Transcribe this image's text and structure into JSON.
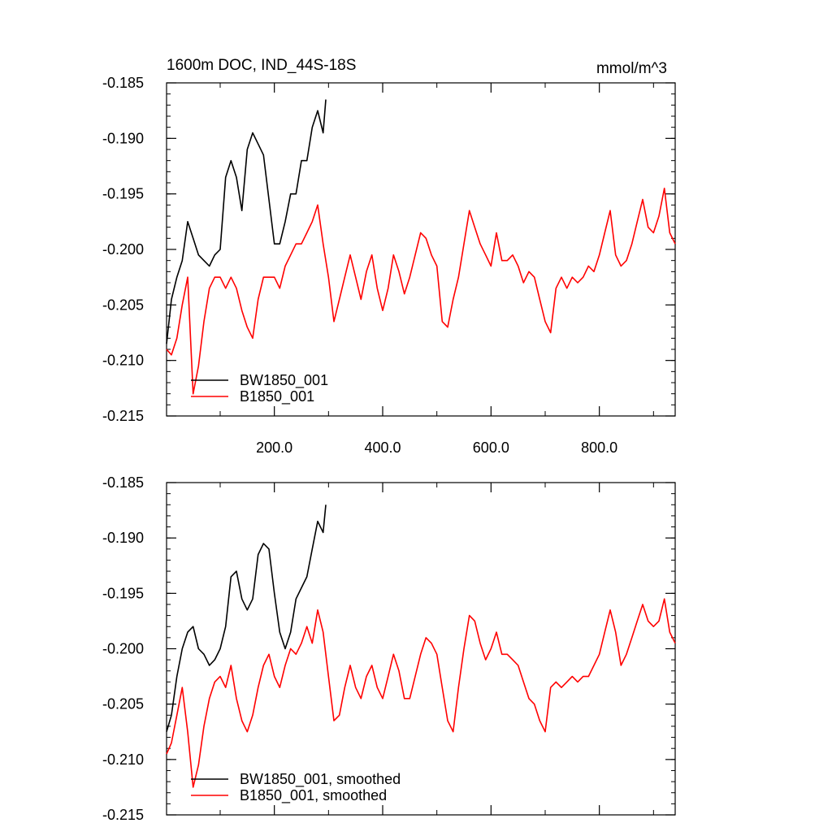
{
  "chart_data": [
    {
      "type": "line",
      "title": "1600m DOC, IND_44S-18S",
      "units": "mmol/m^3",
      "xlim": [
        1,
        940
      ],
      "ylim": [
        -0.215,
        -0.185
      ],
      "x_ticks": [
        200,
        400,
        600,
        800
      ],
      "x_tick_labels": [
        "200.0",
        "400.0",
        "600.0",
        "800.0"
      ],
      "y_ticks": [
        -0.185,
        -0.19,
        -0.195,
        -0.2,
        -0.205,
        -0.21,
        -0.215
      ],
      "y_tick_labels": [
        "-0.185",
        "-0.190",
        "-0.195",
        "-0.200",
        "-0.205",
        "-0.210",
        "-0.215"
      ],
      "grid": false,
      "legend_position": "bottom-left",
      "series": [
        {
          "name": "BW1850_001",
          "color": "#000000",
          "x": [
            1,
            10,
            20,
            30,
            40,
            50,
            60,
            70,
            80,
            90,
            100,
            110,
            120,
            130,
            140,
            150,
            160,
            170,
            180,
            190,
            200,
            210,
            220,
            230,
            240,
            250,
            260,
            270,
            280,
            290,
            295
          ],
          "y": [
            -0.2085,
            -0.2045,
            -0.2025,
            -0.201,
            -0.1975,
            -0.199,
            -0.2005,
            -0.201,
            -0.2015,
            -0.2005,
            -0.2,
            -0.1935,
            -0.192,
            -0.1935,
            -0.1965,
            -0.191,
            -0.1895,
            -0.1905,
            -0.1915,
            -0.1955,
            -0.1995,
            -0.1995,
            -0.1975,
            -0.195,
            -0.195,
            -0.192,
            -0.192,
            -0.189,
            -0.1875,
            -0.1895,
            -0.1865
          ]
        },
        {
          "name": "B1850_001",
          "color": "#ff0000",
          "x": [
            1,
            10,
            20,
            30,
            40,
            50,
            60,
            70,
            80,
            90,
            100,
            110,
            120,
            130,
            140,
            150,
            160,
            170,
            180,
            190,
            200,
            210,
            220,
            230,
            240,
            250,
            260,
            270,
            280,
            290,
            300,
            310,
            320,
            330,
            340,
            350,
            360,
            370,
            380,
            390,
            400,
            410,
            420,
            430,
            440,
            450,
            460,
            470,
            480,
            490,
            500,
            510,
            520,
            530,
            540,
            550,
            560,
            570,
            580,
            590,
            600,
            610,
            620,
            630,
            640,
            650,
            660,
            670,
            680,
            690,
            700,
            710,
            720,
            730,
            740,
            750,
            760,
            770,
            780,
            790,
            800,
            810,
            820,
            830,
            840,
            850,
            860,
            870,
            880,
            890,
            900,
            910,
            920,
            930,
            940
          ],
          "y": [
            -0.209,
            -0.2095,
            -0.208,
            -0.205,
            -0.2025,
            -0.213,
            -0.2105,
            -0.2065,
            -0.2035,
            -0.2025,
            -0.2025,
            -0.2035,
            -0.2025,
            -0.2035,
            -0.2055,
            -0.207,
            -0.208,
            -0.2045,
            -0.2025,
            -0.2025,
            -0.2025,
            -0.2035,
            -0.2015,
            -0.2005,
            -0.1995,
            -0.1995,
            -0.1985,
            -0.1975,
            -0.196,
            -0.1995,
            -0.2025,
            -0.2065,
            -0.2045,
            -0.2025,
            -0.2005,
            -0.2025,
            -0.2045,
            -0.202,
            -0.2005,
            -0.2035,
            -0.2055,
            -0.2035,
            -0.2005,
            -0.202,
            -0.204,
            -0.2025,
            -0.2005,
            -0.1985,
            -0.199,
            -0.2005,
            -0.2015,
            -0.2065,
            -0.207,
            -0.2045,
            -0.2025,
            -0.1995,
            -0.1965,
            -0.198,
            -0.1995,
            -0.2005,
            -0.2015,
            -0.1985,
            -0.201,
            -0.201,
            -0.2005,
            -0.2015,
            -0.203,
            -0.202,
            -0.2025,
            -0.2045,
            -0.2065,
            -0.2075,
            -0.2035,
            -0.2025,
            -0.2035,
            -0.2025,
            -0.203,
            -0.2025,
            -0.2015,
            -0.202,
            -0.2005,
            -0.1985,
            -0.1965,
            -0.2005,
            -0.2015,
            -0.201,
            -0.1995,
            -0.1975,
            -0.1955,
            -0.198,
            -0.1985,
            -0.197,
            -0.1945,
            -0.1985,
            -0.1995
          ]
        }
      ]
    },
    {
      "type": "line",
      "xlim": [
        1,
        940
      ],
      "ylim": [
        -0.215,
        -0.185
      ],
      "y_ticks": [
        -0.185,
        -0.19,
        -0.195,
        -0.2,
        -0.205,
        -0.21,
        -0.215
      ],
      "y_tick_labels": [
        "-0.185",
        "-0.190",
        "-0.195",
        "-0.200",
        "-0.205",
        "-0.210",
        "-0.215"
      ],
      "grid": false,
      "legend_position": "bottom-left",
      "series": [
        {
          "name": "BW1850_001, smoothed",
          "color": "#000000",
          "x": [
            1,
            10,
            20,
            30,
            40,
            50,
            60,
            70,
            80,
            90,
            100,
            110,
            120,
            130,
            140,
            150,
            160,
            170,
            180,
            190,
            200,
            210,
            220,
            230,
            240,
            250,
            260,
            270,
            280,
            290,
            295
          ],
          "y": [
            -0.2075,
            -0.206,
            -0.2025,
            -0.2,
            -0.1985,
            -0.198,
            -0.2,
            -0.2005,
            -0.2015,
            -0.201,
            -0.2,
            -0.198,
            -0.1935,
            -0.193,
            -0.1955,
            -0.1965,
            -0.1955,
            -0.1915,
            -0.1905,
            -0.191,
            -0.195,
            -0.1985,
            -0.2,
            -0.1985,
            -0.1955,
            -0.1945,
            -0.1935,
            -0.191,
            -0.1885,
            -0.1895,
            -0.187
          ]
        },
        {
          "name": "B1850_001, smoothed",
          "color": "#ff0000",
          "x": [
            1,
            10,
            20,
            30,
            40,
            50,
            60,
            70,
            80,
            90,
            100,
            110,
            120,
            130,
            140,
            150,
            160,
            170,
            180,
            190,
            200,
            210,
            220,
            230,
            240,
            250,
            260,
            270,
            280,
            290,
            300,
            310,
            320,
            330,
            340,
            350,
            360,
            370,
            380,
            390,
            400,
            410,
            420,
            430,
            440,
            450,
            460,
            470,
            480,
            490,
            500,
            510,
            520,
            530,
            540,
            550,
            560,
            570,
            580,
            590,
            600,
            610,
            620,
            630,
            640,
            650,
            660,
            670,
            680,
            690,
            700,
            710,
            720,
            730,
            740,
            750,
            760,
            770,
            780,
            790,
            800,
            810,
            820,
            830,
            840,
            850,
            860,
            870,
            880,
            890,
            900,
            910,
            920,
            930,
            940
          ],
          "y": [
            -0.2095,
            -0.2085,
            -0.206,
            -0.2035,
            -0.2075,
            -0.2125,
            -0.2105,
            -0.207,
            -0.2045,
            -0.203,
            -0.2025,
            -0.2035,
            -0.2015,
            -0.2045,
            -0.2065,
            -0.2075,
            -0.206,
            -0.2035,
            -0.2015,
            -0.2005,
            -0.2025,
            -0.2035,
            -0.2015,
            -0.2,
            -0.2005,
            -0.1995,
            -0.198,
            -0.1995,
            -0.1965,
            -0.1985,
            -0.2025,
            -0.2065,
            -0.206,
            -0.2035,
            -0.2015,
            -0.2035,
            -0.2045,
            -0.2025,
            -0.2015,
            -0.2035,
            -0.2045,
            -0.2025,
            -0.2005,
            -0.202,
            -0.2045,
            -0.2045,
            -0.2025,
            -0.2005,
            -0.199,
            -0.1995,
            -0.2005,
            -0.2035,
            -0.2065,
            -0.2075,
            -0.2035,
            -0.2,
            -0.197,
            -0.1975,
            -0.1995,
            -0.201,
            -0.2,
            -0.1985,
            -0.2005,
            -0.2005,
            -0.201,
            -0.2015,
            -0.203,
            -0.2045,
            -0.205,
            -0.2065,
            -0.2075,
            -0.2035,
            -0.203,
            -0.2035,
            -0.203,
            -0.2025,
            -0.203,
            -0.2025,
            -0.2025,
            -0.2015,
            -0.2005,
            -0.1985,
            -0.1965,
            -0.1985,
            -0.2015,
            -0.2005,
            -0.199,
            -0.1975,
            -0.196,
            -0.1975,
            -0.198,
            -0.1975,
            -0.1955,
            -0.1985,
            -0.1995
          ]
        }
      ]
    }
  ]
}
